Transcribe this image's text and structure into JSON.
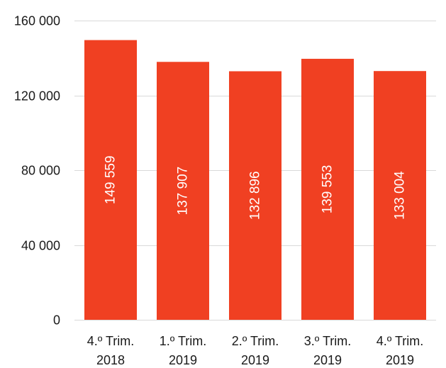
{
  "chart_data": {
    "type": "bar",
    "title": "",
    "xlabel": "",
    "ylabel": "",
    "categories": [
      [
        "4.º Trim.",
        "2018"
      ],
      [
        "1.º Trim.",
        "2019"
      ],
      [
        "2.º Trim.",
        "2019"
      ],
      [
        "3.º Trim.",
        "2019"
      ],
      [
        "4.º Trim.",
        "2019"
      ]
    ],
    "values": [
      149559,
      137907,
      132896,
      139553,
      133004
    ],
    "data_labels": [
      "149 559",
      "137 907",
      "132 896",
      "139 553",
      "133 004"
    ],
    "ylim": [
      0,
      160000
    ],
    "yticks": [
      0,
      40000,
      80000,
      120000,
      160000
    ],
    "ytick_labels": [
      "0",
      "40 000",
      "80 000",
      "120 000",
      "160 000"
    ],
    "grid": true,
    "legend": "none",
    "bar_color": "#f04022",
    "data_label_orientation": "vertical"
  }
}
